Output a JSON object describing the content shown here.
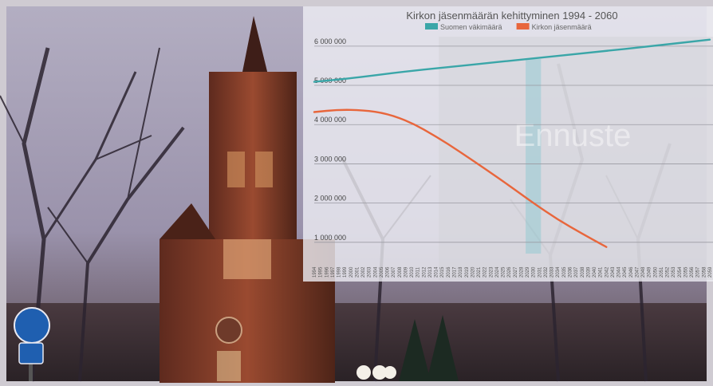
{
  "colors": {
    "population": "#3aa6a8",
    "members": "#e8663c",
    "forecast_band": "#d3d3d9",
    "highlight": "#6fc4cc",
    "grid": "#9a9aa2",
    "sky": "#a8a2b8",
    "church": "#7a3424"
  },
  "chart_data": {
    "type": "line",
    "title": "Kirkon jäsenmäärän kehittyminen 1994 - 2060",
    "watermark": "Ennuste",
    "legend_position": "top-center",
    "grid": true,
    "ylim": [
      0,
      6200000
    ],
    "yticks": [
      {
        "value": 1000000,
        "label": "1 000 000"
      },
      {
        "value": 2000000,
        "label": "2 000 000"
      },
      {
        "value": 3000000,
        "label": "3 000 000"
      },
      {
        "value": 4000000,
        "label": "4 000 000"
      },
      {
        "value": 5000000,
        "label": "5 000 000"
      },
      {
        "value": 6000000,
        "label": "6 000 000"
      }
    ],
    "x_labels": [
      "1994",
      "1995",
      "1996",
      "1997",
      "1998",
      "1999",
      "2000",
      "2001",
      "2002",
      "2003",
      "2004",
      "2005",
      "2006",
      "2007",
      "2008",
      "2009",
      "2010",
      "2011",
      "2012",
      "2013",
      "2014",
      "2015",
      "2016",
      "2017",
      "2018",
      "2019",
      "2020",
      "2021",
      "2022",
      "2023",
      "2024",
      "2025",
      "2026",
      "2027",
      "2028",
      "2029",
      "2030",
      "2031",
      "2032",
      "2033",
      "2034",
      "2035",
      "2036",
      "2037",
      "2038",
      "2039",
      "2040",
      "2041",
      "2042",
      "2043",
      "2044",
      "2045",
      "2046",
      "2047",
      "2048",
      "2049",
      "2050",
      "2051",
      "2052",
      "2053",
      "2054",
      "2055",
      "2056",
      "2057",
      "2058",
      "2059"
    ],
    "forecast_start": 2015,
    "highlight_range": [
      2029,
      2031
    ],
    "series": [
      {
        "name": "Suomen väkimäärä",
        "colorKey": "population",
        "points": [
          [
            1994,
            5090000
          ],
          [
            2000,
            5180000
          ],
          [
            2010,
            5375000
          ],
          [
            2020,
            5525000
          ],
          [
            2030,
            5690000
          ],
          [
            2040,
            5845000
          ],
          [
            2050,
            6010000
          ],
          [
            2059,
            6165000
          ]
        ]
      },
      {
        "name": "Kirkon jäsenmäärä",
        "colorKey": "members",
        "points": [
          [
            1994,
            4320000
          ],
          [
            1998,
            4380000
          ],
          [
            2002,
            4370000
          ],
          [
            2006,
            4280000
          ],
          [
            2010,
            4050000
          ],
          [
            2014,
            3700000
          ],
          [
            2018,
            3300000
          ],
          [
            2022,
            2880000
          ],
          [
            2026,
            2450000
          ],
          [
            2030,
            2000000
          ],
          [
            2034,
            1580000
          ],
          [
            2038,
            1220000
          ],
          [
            2042,
            880000
          ]
        ]
      }
    ]
  }
}
